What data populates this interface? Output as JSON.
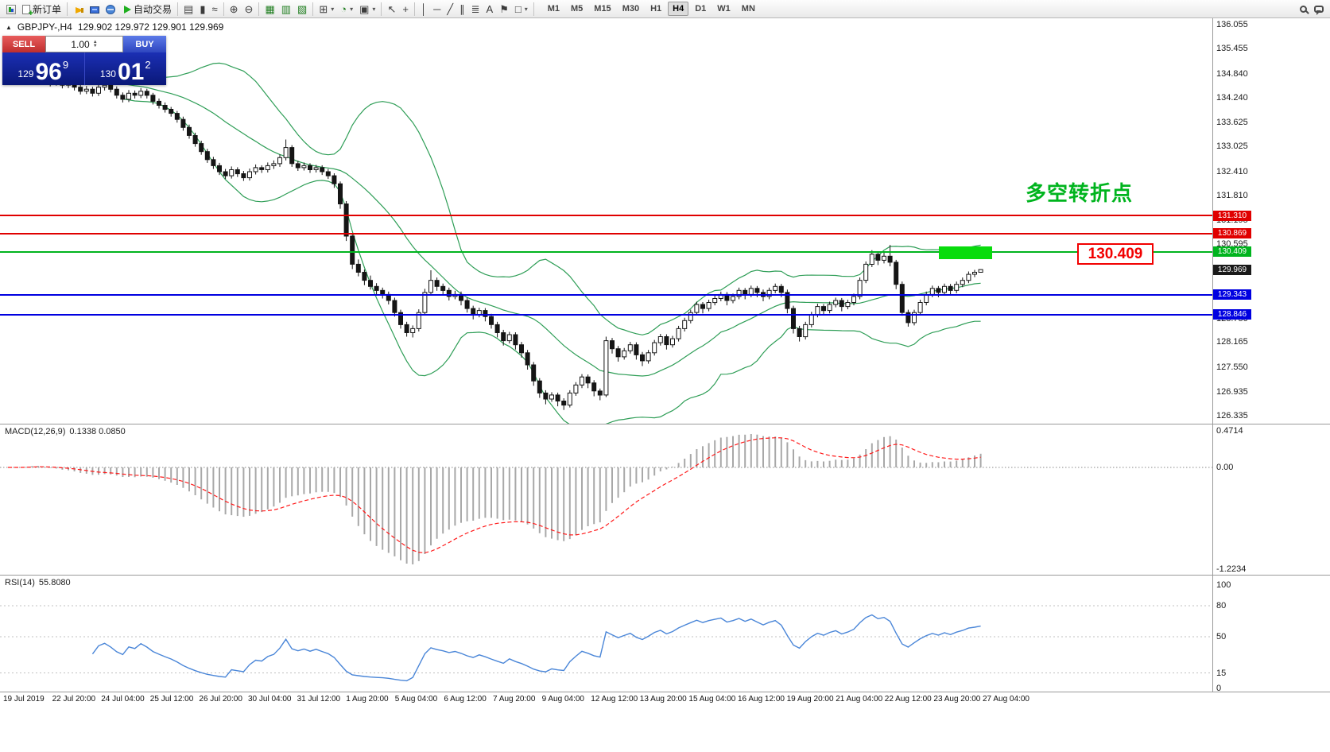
{
  "ui": {
    "caret": "▾",
    "up": "▲",
    "down": "▼",
    "marker": "▲"
  },
  "toolbar": {
    "items": [
      {
        "t": "btn",
        "name": "app-button",
        "icon": "app"
      },
      {
        "t": "btn",
        "name": "new-order-button",
        "icon": "doc",
        "label": "新订单"
      },
      {
        "t": "sep"
      },
      {
        "t": "btn",
        "name": "alerts-button",
        "icon": "horn"
      },
      {
        "t": "btn",
        "name": "market-watch-button",
        "icon": "screen"
      },
      {
        "t": "btn",
        "name": "community-button",
        "icon": "globe"
      },
      {
        "t": "btn",
        "name": "autotrading-button",
        "icon": "play",
        "label": "自动交易"
      },
      {
        "t": "sep"
      },
      {
        "t": "btn",
        "name": "bar-chart-button",
        "glyph": "▤"
      },
      {
        "t": "btn",
        "name": "candlestick-chart-button",
        "glyph": "▮"
      },
      {
        "t": "btn",
        "name": "line-chart-button",
        "glyph": "≈"
      },
      {
        "t": "sep"
      },
      {
        "t": "btn",
        "name": "zoom-in-button",
        "glyph": "⊕"
      },
      {
        "t": "btn",
        "name": "zoom-out-button",
        "glyph": "⊖"
      },
      {
        "t": "sep"
      },
      {
        "t": "btn",
        "name": "tile-windows-button",
        "glyph": "▦",
        "color": "#1e7d1e"
      },
      {
        "t": "btn",
        "name": "auto-arrange-button",
        "glyph": "▥",
        "color": "#1e7d1e"
      },
      {
        "t": "btn",
        "name": "chart-shift-button",
        "glyph": "▧",
        "color": "#1e7d1e"
      },
      {
        "t": "sep"
      },
      {
        "t": "btn",
        "name": "indicators-button",
        "glyph": "⊞",
        "caret": true
      },
      {
        "t": "btn",
        "name": "periods-button",
        "glyph": "◔",
        "caret": true,
        "color": "#1e7d1e"
      },
      {
        "t": "btn",
        "name": "templates-button",
        "glyph": "▣",
        "caret": true
      },
      {
        "t": "sep"
      },
      {
        "t": "btn",
        "name": "cursor-button",
        "glyph": "↖"
      },
      {
        "t": "btn",
        "name": "crosshair-button",
        "glyph": "+"
      },
      {
        "t": "sep"
      },
      {
        "t": "btn",
        "name": "vertical-line-button",
        "glyph": "│"
      },
      {
        "t": "btn",
        "name": "horizontal-line-button",
        "glyph": "─"
      },
      {
        "t": "btn",
        "name": "trendline-button",
        "glyph": "╱"
      },
      {
        "t": "btn",
        "name": "channel-button",
        "glyph": "∥"
      },
      {
        "t": "btn",
        "name": "fibonacci-button",
        "glyph": "≣"
      },
      {
        "t": "btn",
        "name": "text-button",
        "glyph": "A"
      },
      {
        "t": "btn",
        "name": "label-button",
        "glyph": "⚑"
      },
      {
        "t": "btn",
        "name": "shapes-button",
        "glyph": "□",
        "caret": true
      },
      {
        "t": "sep"
      }
    ],
    "timeframes": {
      "active": "H4",
      "items": [
        "M1",
        "M5",
        "M15",
        "M30",
        "H1",
        "H4",
        "D1",
        "W1",
        "MN"
      ]
    },
    "right_items": [
      {
        "name": "search-button",
        "icon": "search"
      },
      {
        "name": "chat-button",
        "icon": "chat"
      }
    ]
  },
  "chart": {
    "title": "GBPJPY-,H4",
    "ohlc_text": "129.902 129.972 129.901 129.969",
    "trade_panel": {
      "sell_label": "SELL",
      "buy_label": "BUY",
      "volume": "1.00",
      "sell_price": {
        "small": "129",
        "big": "96",
        "sup": "9"
      },
      "buy_price": {
        "small": "130",
        "big": "01",
        "sup": "2"
      }
    },
    "annotation": {
      "text": "多空转折点",
      "color": "#00b41e"
    },
    "callout": {
      "text": "130.409",
      "color": "#f20000"
    },
    "levels": [
      {
        "price": 131.31,
        "label": "131.310",
        "color": "#e00000"
      },
      {
        "price": 130.869,
        "label": "130.869",
        "color": "#e00000"
      },
      {
        "price": 130.409,
        "label": "130.409",
        "color": "#00b41e"
      },
      {
        "price": 129.343,
        "label": "129.343",
        "color": "#0000e0"
      },
      {
        "price": 128.846,
        "label": "128.846",
        "color": "#0000e0"
      }
    ],
    "current_price": {
      "label": "129.969",
      "price": 129.969,
      "badge_color": "#1a1a1a"
    },
    "axis_labels": [
      "136.055",
      "135.455",
      "134.840",
      "134.240",
      "133.625",
      "133.025",
      "132.410",
      "131.810",
      "131.195",
      "130.595",
      "129.980",
      "129.365",
      "128.750",
      "128.165",
      "127.550",
      "126.935",
      "126.335"
    ],
    "axis_range": {
      "max": 136.055,
      "min": 126.335
    }
  },
  "macd": {
    "title": "MACD(12,26,9)",
    "values": "0.1338 0.0850",
    "axis_labels": [
      "0.4714",
      "0.00",
      "-1.2234"
    ]
  },
  "rsi": {
    "title": "RSI(14)",
    "value": "55.8080",
    "axis_labels": [
      "100",
      "80",
      "50",
      "15",
      "0"
    ],
    "level_lines": [
      80,
      50,
      15
    ]
  },
  "time_axis": {
    "labels": [
      "19 Jul 2019",
      "22 Jul 20:00",
      "24 Jul 04:00",
      "25 Jul 12:00",
      "26 Jul 20:00",
      "30 Jul 04:00",
      "31 Jul 12:00",
      "1 Aug 20:00",
      "5 Aug 04:00",
      "6 Aug 12:00",
      "7 Aug 20:00",
      "9 Aug 04:00",
      "12 Aug 12:00",
      "13 Aug 20:00",
      "15 Aug 04:00",
      "16 Aug 12:00",
      "19 Aug 20:00",
      "21 Aug 04:00",
      "22 Aug 12:00",
      "23 Aug 20:00",
      "27 Aug 04:00"
    ]
  },
  "chart_data": {
    "type": "candlestick",
    "symbol": "GBPJPY",
    "timeframe": "H4",
    "indicators": {
      "bollinger": {
        "period": 20,
        "deviation": 2
      },
      "macd": {
        "fast": 12,
        "slow": 26,
        "signal": 9
      },
      "rsi": {
        "period": 14
      }
    },
    "ohlc": [
      [
        134.7,
        134.83,
        134.62,
        134.75
      ],
      [
        134.75,
        134.88,
        134.68,
        134.8
      ],
      [
        134.8,
        134.86,
        134.62,
        134.7
      ],
      [
        134.7,
        134.92,
        134.64,
        134.85
      ],
      [
        134.85,
        134.98,
        134.78,
        134.9
      ],
      [
        134.9,
        134.96,
        134.72,
        134.8
      ],
      [
        134.8,
        134.87,
        134.62,
        134.7
      ],
      [
        134.7,
        134.78,
        134.52,
        134.6
      ],
      [
        134.6,
        134.73,
        134.54,
        134.65
      ],
      [
        134.65,
        134.71,
        134.47,
        134.55
      ],
      [
        134.55,
        134.68,
        134.48,
        134.6
      ],
      [
        134.6,
        134.66,
        134.42,
        134.5
      ],
      [
        134.5,
        134.57,
        134.32,
        134.4
      ],
      [
        134.4,
        134.53,
        134.33,
        134.45
      ],
      [
        134.45,
        134.51,
        134.27,
        134.35
      ],
      [
        134.35,
        134.58,
        134.28,
        134.5
      ],
      [
        134.5,
        134.63,
        134.42,
        134.55
      ],
      [
        134.55,
        134.61,
        134.37,
        134.45
      ],
      [
        134.45,
        134.52,
        134.22,
        134.3
      ],
      [
        134.3,
        134.37,
        134.12,
        134.2
      ],
      [
        134.2,
        134.43,
        134.13,
        134.35
      ],
      [
        134.35,
        134.42,
        134.22,
        134.3
      ],
      [
        134.3,
        134.48,
        134.23,
        134.4
      ],
      [
        134.4,
        134.46,
        134.22,
        134.3
      ],
      [
        134.3,
        134.36,
        134.07,
        134.15
      ],
      [
        134.15,
        134.22,
        133.97,
        134.05
      ],
      [
        134.05,
        134.12,
        133.87,
        133.95
      ],
      [
        133.95,
        134.01,
        133.77,
        133.85
      ],
      [
        133.85,
        133.91,
        133.62,
        133.7
      ],
      [
        133.7,
        133.77,
        133.42,
        133.5
      ],
      [
        133.5,
        133.57,
        133.22,
        133.3
      ],
      [
        133.3,
        133.37,
        133.02,
        133.1
      ],
      [
        133.1,
        133.17,
        132.82,
        132.9
      ],
      [
        132.9,
        132.97,
        132.62,
        132.7
      ],
      [
        132.7,
        132.77,
        132.47,
        132.55
      ],
      [
        132.55,
        132.62,
        132.32,
        132.4
      ],
      [
        132.4,
        132.47,
        132.22,
        132.3
      ],
      [
        132.3,
        132.53,
        132.23,
        132.45
      ],
      [
        132.45,
        132.51,
        132.27,
        132.35
      ],
      [
        132.35,
        132.42,
        132.17,
        132.25
      ],
      [
        132.25,
        132.48,
        132.18,
        132.4
      ],
      [
        132.4,
        132.58,
        132.33,
        132.5
      ],
      [
        132.5,
        132.56,
        132.37,
        132.45
      ],
      [
        132.45,
        132.63,
        132.38,
        132.55
      ],
      [
        132.55,
        132.68,
        132.47,
        132.6
      ],
      [
        132.6,
        132.83,
        132.52,
        132.75
      ],
      [
        132.75,
        133.2,
        132.68,
        133.0
      ],
      [
        133.0,
        133.06,
        132.52,
        132.6
      ],
      [
        132.6,
        132.67,
        132.42,
        132.5
      ],
      [
        132.5,
        132.63,
        132.43,
        132.55
      ],
      [
        132.55,
        132.61,
        132.37,
        132.45
      ],
      [
        132.45,
        132.57,
        132.38,
        132.5
      ],
      [
        132.5,
        132.56,
        132.32,
        132.4
      ],
      [
        132.4,
        132.47,
        132.22,
        132.3
      ],
      [
        132.3,
        132.36,
        132.0,
        132.1
      ],
      [
        132.1,
        132.16,
        131.48,
        131.6
      ],
      [
        131.6,
        131.67,
        130.68,
        130.8
      ],
      [
        130.8,
        130.87,
        129.98,
        130.1
      ],
      [
        130.1,
        130.22,
        129.8,
        129.9
      ],
      [
        129.9,
        129.97,
        129.58,
        129.7
      ],
      [
        129.7,
        129.82,
        129.47,
        129.55
      ],
      [
        129.55,
        129.63,
        129.35,
        129.45
      ],
      [
        129.45,
        129.52,
        129.25,
        129.35
      ],
      [
        129.35,
        129.42,
        129.1,
        129.2
      ],
      [
        129.2,
        129.27,
        128.8,
        128.9
      ],
      [
        128.9,
        128.97,
        128.5,
        128.6
      ],
      [
        128.6,
        128.67,
        128.3,
        128.4
      ],
      [
        128.4,
        128.58,
        128.28,
        128.5
      ],
      [
        128.5,
        128.98,
        128.43,
        128.9
      ],
      [
        128.9,
        129.49,
        128.83,
        129.4
      ],
      [
        129.4,
        129.95,
        129.33,
        129.7
      ],
      [
        129.7,
        129.77,
        129.44,
        129.55
      ],
      [
        129.55,
        129.62,
        129.33,
        129.45
      ],
      [
        129.45,
        129.52,
        129.2,
        129.3
      ],
      [
        129.3,
        129.44,
        129.23,
        129.35
      ],
      [
        129.35,
        129.42,
        129.08,
        129.2
      ],
      [
        129.2,
        129.27,
        128.9,
        129.0
      ],
      [
        129.0,
        129.07,
        128.73,
        128.85
      ],
      [
        128.85,
        129.02,
        128.78,
        128.95
      ],
      [
        128.95,
        129.01,
        128.68,
        128.8
      ],
      [
        128.8,
        128.87,
        128.5,
        128.6
      ],
      [
        128.6,
        128.67,
        128.28,
        128.4
      ],
      [
        128.4,
        128.47,
        128.08,
        128.2
      ],
      [
        128.2,
        128.42,
        128.13,
        128.35
      ],
      [
        128.35,
        128.41,
        127.98,
        128.1
      ],
      [
        128.1,
        128.17,
        127.78,
        127.9
      ],
      [
        127.9,
        127.97,
        127.48,
        127.6
      ],
      [
        127.6,
        127.67,
        127.08,
        127.2
      ],
      [
        127.2,
        127.27,
        126.78,
        126.9
      ],
      [
        126.9,
        126.97,
        126.62,
        126.75
      ],
      [
        126.75,
        126.92,
        126.68,
        126.85
      ],
      [
        126.85,
        126.91,
        126.57,
        126.7
      ],
      [
        126.7,
        126.77,
        126.48,
        126.6
      ],
      [
        126.6,
        126.97,
        126.54,
        126.9
      ],
      [
        126.9,
        127.17,
        126.83,
        127.1
      ],
      [
        127.1,
        127.37,
        127.02,
        127.3
      ],
      [
        127.3,
        127.36,
        127.02,
        127.15
      ],
      [
        127.15,
        127.22,
        126.82,
        126.95
      ],
      [
        126.95,
        127.01,
        126.72,
        126.85
      ],
      [
        126.85,
        128.3,
        126.8,
        128.2
      ],
      [
        128.2,
        128.27,
        127.88,
        128.0
      ],
      [
        128.0,
        128.07,
        127.68,
        127.8
      ],
      [
        127.8,
        128.02,
        127.73,
        127.95
      ],
      [
        127.95,
        128.17,
        127.88,
        128.1
      ],
      [
        128.1,
        128.16,
        127.73,
        127.85
      ],
      [
        127.85,
        127.92,
        127.57,
        127.7
      ],
      [
        127.7,
        127.97,
        127.63,
        127.9
      ],
      [
        127.9,
        128.22,
        127.83,
        128.15
      ],
      [
        128.15,
        128.37,
        128.08,
        128.3
      ],
      [
        128.3,
        128.36,
        127.98,
        128.1
      ],
      [
        128.1,
        128.32,
        128.03,
        128.25
      ],
      [
        128.25,
        128.57,
        128.18,
        128.5
      ],
      [
        128.5,
        128.77,
        128.43,
        128.7
      ],
      [
        128.7,
        128.97,
        128.63,
        128.9
      ],
      [
        128.9,
        129.17,
        128.83,
        129.1
      ],
      [
        129.1,
        129.16,
        128.88,
        129.0
      ],
      [
        129.0,
        129.22,
        128.93,
        129.15
      ],
      [
        129.15,
        129.32,
        129.08,
        129.25
      ],
      [
        129.25,
        129.42,
        129.18,
        129.35
      ],
      [
        129.35,
        129.41,
        129.08,
        129.2
      ],
      [
        129.2,
        129.37,
        129.13,
        129.3
      ],
      [
        129.3,
        129.52,
        129.23,
        129.45
      ],
      [
        129.45,
        129.51,
        129.23,
        129.35
      ],
      [
        129.35,
        129.57,
        129.28,
        129.5
      ],
      [
        129.5,
        129.56,
        129.28,
        129.4
      ],
      [
        129.4,
        129.47,
        129.18,
        129.3
      ],
      [
        129.3,
        129.52,
        129.23,
        129.45
      ],
      [
        129.45,
        129.62,
        129.38,
        129.55
      ],
      [
        129.55,
        129.61,
        129.28,
        129.4
      ],
      [
        129.4,
        129.47,
        128.88,
        129.0
      ],
      [
        129.0,
        129.07,
        128.38,
        128.5
      ],
      [
        128.5,
        128.57,
        128.18,
        128.3
      ],
      [
        128.3,
        128.67,
        128.23,
        128.6
      ],
      [
        128.6,
        128.92,
        128.53,
        128.85
      ],
      [
        128.85,
        129.12,
        128.78,
        129.05
      ],
      [
        129.05,
        129.11,
        128.83,
        128.95
      ],
      [
        128.95,
        129.17,
        128.88,
        129.1
      ],
      [
        129.1,
        129.27,
        129.03,
        129.2
      ],
      [
        129.2,
        129.26,
        128.93,
        129.05
      ],
      [
        129.05,
        129.22,
        128.98,
        129.15
      ],
      [
        129.15,
        129.37,
        129.08,
        129.3
      ],
      [
        129.3,
        129.77,
        129.23,
        129.7
      ],
      [
        129.7,
        130.17,
        129.63,
        130.1
      ],
      [
        130.1,
        130.45,
        130.03,
        130.35
      ],
      [
        130.35,
        130.41,
        130.08,
        130.2
      ],
      [
        130.2,
        130.42,
        130.12,
        130.3
      ],
      [
        130.3,
        130.58,
        130.05,
        130.15
      ],
      [
        130.15,
        130.21,
        129.48,
        129.6
      ],
      [
        129.6,
        129.67,
        128.82,
        128.9
      ],
      [
        128.9,
        128.97,
        128.55,
        128.65
      ],
      [
        128.65,
        128.97,
        128.58,
        128.9
      ],
      [
        128.9,
        129.22,
        128.83,
        129.15
      ],
      [
        129.15,
        129.42,
        129.08,
        129.35
      ],
      [
        129.35,
        129.57,
        129.28,
        129.5
      ],
      [
        129.5,
        129.56,
        129.28,
        129.4
      ],
      [
        129.4,
        129.62,
        129.33,
        129.55
      ],
      [
        129.55,
        129.61,
        129.33,
        129.45
      ],
      [
        129.45,
        129.67,
        129.38,
        129.6
      ],
      [
        129.6,
        129.77,
        129.53,
        129.7
      ],
      [
        129.7,
        129.92,
        129.63,
        129.85
      ],
      [
        129.85,
        129.96,
        129.78,
        129.9
      ],
      [
        129.902,
        129.972,
        129.901,
        129.969
      ]
    ]
  }
}
